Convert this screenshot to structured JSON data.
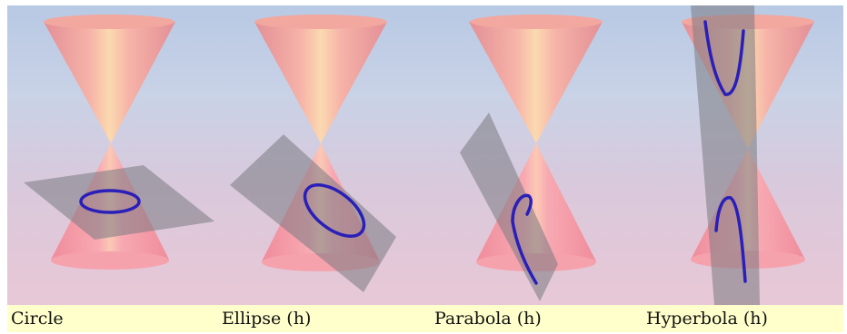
{
  "captions": {
    "circle": "Circle",
    "ellipse": "Ellipse (h)",
    "parabola": "Parabola (h)",
    "hyperbola": "Hyperbola (h)"
  },
  "colors": {
    "curve": "#2a1fb8",
    "plane": "#7a7a82",
    "cone": "#f3a3a8",
    "caption_background": "#ffffcc"
  }
}
